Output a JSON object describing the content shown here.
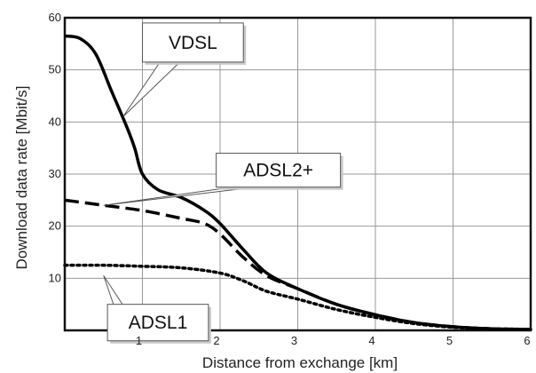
{
  "chart_data": {
    "type": "line",
    "title": "",
    "xlabel": "Distance from exchange [km]",
    "ylabel": "Download data rate  [Mbit/s]",
    "xlim": [
      0,
      6
    ],
    "ylim": [
      0,
      60
    ],
    "grid": true,
    "x_ticks": [
      "1",
      "2",
      "3",
      "4",
      "5",
      "6"
    ],
    "y_ticks": [
      "10",
      "20",
      "30",
      "40",
      "50",
      "60"
    ],
    "series": [
      {
        "name": "VDSL",
        "style": "solid",
        "color": "#000000",
        "x": [
          0,
          0.2,
          0.4,
          0.6,
          0.8,
          0.9,
          1.0,
          1.2,
          1.5,
          1.8,
          2.0,
          2.3,
          2.6,
          3.0,
          3.5,
          4.0,
          4.5,
          5.0,
          5.5,
          6.0
        ],
        "y": [
          56.5,
          56,
          53,
          46,
          39,
          35,
          30,
          27,
          25.5,
          23,
          20.5,
          15.5,
          11,
          8,
          5,
          3,
          1.5,
          0.7,
          0.3,
          0.2
        ]
      },
      {
        "name": "ADSL2+",
        "style": "dashed",
        "color": "#000000",
        "x": [
          0,
          0.5,
          1.0,
          1.5,
          1.8,
          2.0,
          2.3,
          2.6,
          3.0,
          3.5,
          4.0,
          4.5,
          5.0,
          5.5,
          6.0
        ],
        "y": [
          25,
          24,
          23,
          21.5,
          20.5,
          18.5,
          14,
          10.5,
          8,
          5,
          3,
          1.5,
          0.7,
          0.3,
          0.2
        ]
      },
      {
        "name": "ADSL1",
        "style": "dotted",
        "color": "#000000",
        "x": [
          0,
          0.5,
          1.0,
          1.5,
          2.0,
          2.3,
          2.6,
          3.0,
          3.5,
          4.0,
          4.5,
          5.0,
          5.5,
          6.0
        ],
        "y": [
          12.5,
          12.5,
          12.3,
          12,
          11,
          9.5,
          7.5,
          6,
          4,
          2.5,
          1.3,
          0.6,
          0.3,
          0.2
        ]
      }
    ],
    "callouts": [
      {
        "label": "VDSL",
        "series": "VDSL",
        "box_x": 1.0,
        "box_y": 59,
        "box_w": 1.3,
        "box_h": 7.5,
        "point_x": 0.75,
        "point_y": 41
      },
      {
        "label": "ADSL2+",
        "series": "ADSL2+",
        "box_x": 1.95,
        "box_y": 34,
        "box_w": 1.6,
        "box_h": 6.5,
        "point_x": 0.5,
        "point_y": 24
      },
      {
        "label": "ADSL1",
        "series": "ADSL1",
        "box_x": 0.55,
        "box_y": 5,
        "box_w": 1.3,
        "box_h": 7,
        "point_x": 0.5,
        "point_y": 10.5
      }
    ]
  }
}
